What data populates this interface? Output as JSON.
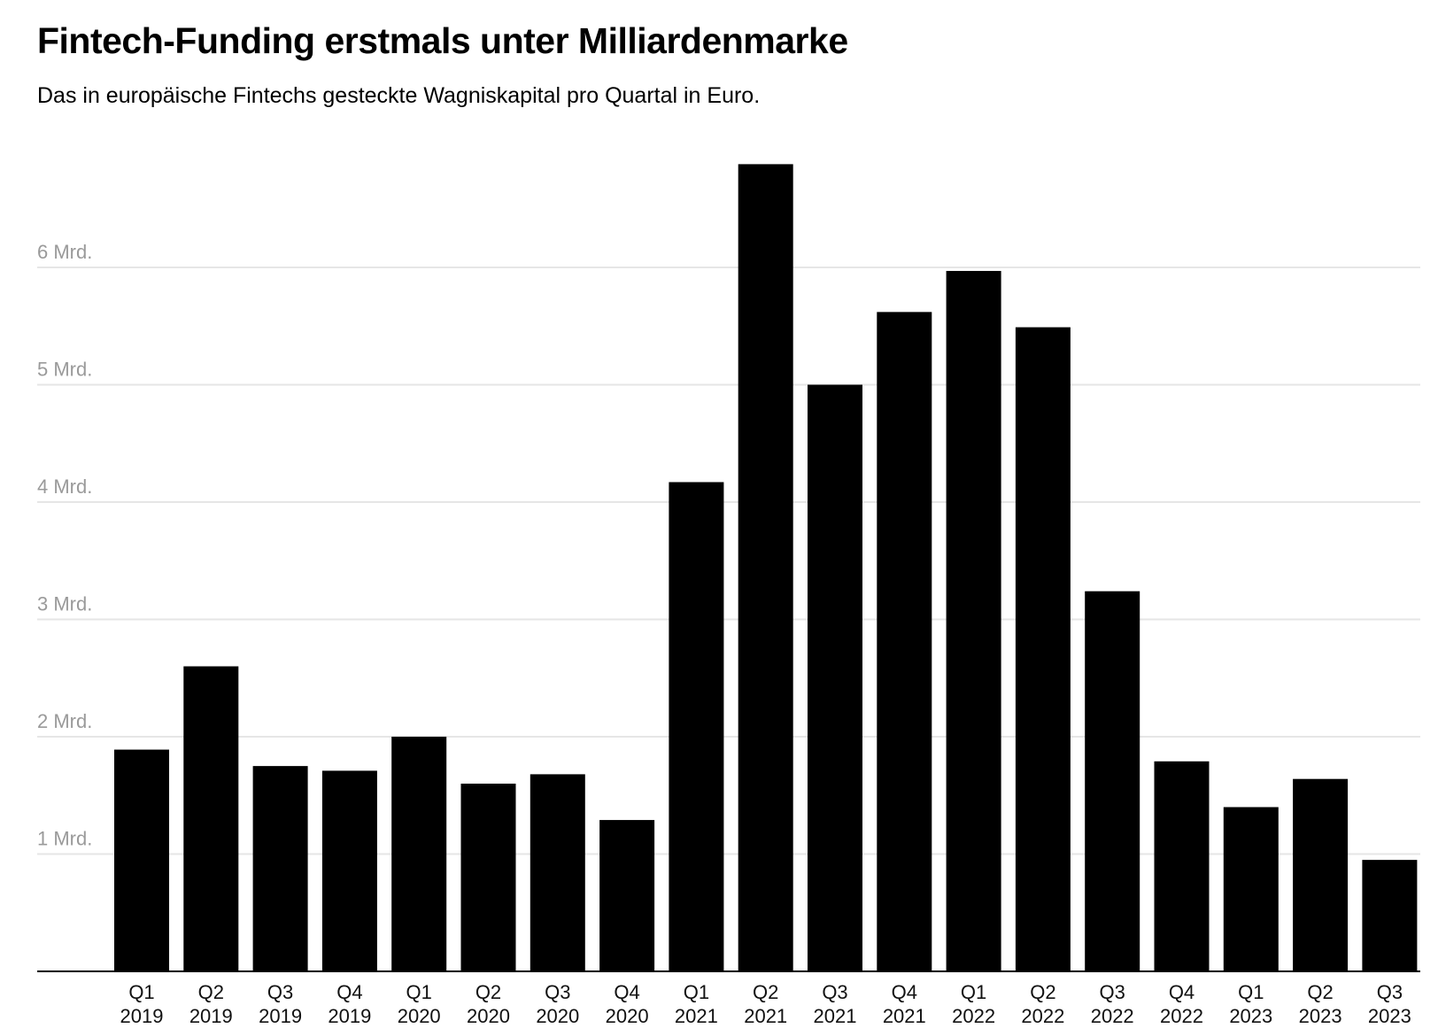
{
  "title": "Fintech-Funding erstmals unter Milliardenmarke",
  "subtitle": "Das in europäische Fintechs gesteckte Wagniskapital pro Quartal in Euro.",
  "colors": {
    "bar": "#000000",
    "grid": "#e6e6e6",
    "axis": "#000000",
    "ytick": "#9a9a9a",
    "xtick": "#111111"
  },
  "chart_data": {
    "type": "bar",
    "title": "Fintech-Funding erstmals unter Milliardenmarke",
    "subtitle": "Das in europäische Fintechs gesteckte Wagniskapital pro Quartal in Euro.",
    "xlabel": "",
    "ylabel": "",
    "grid": true,
    "ylim": [
      0,
      7
    ],
    "yticks": [
      1,
      2,
      3,
      4,
      5,
      6
    ],
    "ytick_labels": [
      "1 Mrd.",
      "2 Mrd.",
      "3 Mrd.",
      "4 Mrd.",
      "5 Mrd.",
      "6 Mrd."
    ],
    "categories": [
      [
        "Q1",
        "2019"
      ],
      [
        "Q2",
        "2019"
      ],
      [
        "Q3",
        "2019"
      ],
      [
        "Q4",
        "2019"
      ],
      [
        "Q1",
        "2020"
      ],
      [
        "Q2",
        "2020"
      ],
      [
        "Q3",
        "2020"
      ],
      [
        "Q4",
        "2020"
      ],
      [
        "Q1",
        "2021"
      ],
      [
        "Q2",
        "2021"
      ],
      [
        "Q3",
        "2021"
      ],
      [
        "Q4",
        "2021"
      ],
      [
        "Q1",
        "2022"
      ],
      [
        "Q2",
        "2022"
      ],
      [
        "Q3",
        "2022"
      ],
      [
        "Q4",
        "2022"
      ],
      [
        "Q1",
        "2023"
      ],
      [
        "Q2",
        "2023"
      ],
      [
        "Q3",
        "2023"
      ]
    ],
    "values": [
      1.89,
      2.6,
      1.75,
      1.71,
      2.0,
      1.6,
      1.68,
      1.29,
      4.17,
      6.88,
      5.0,
      5.62,
      5.97,
      5.49,
      3.24,
      1.79,
      1.4,
      1.64,
      0.95
    ]
  }
}
